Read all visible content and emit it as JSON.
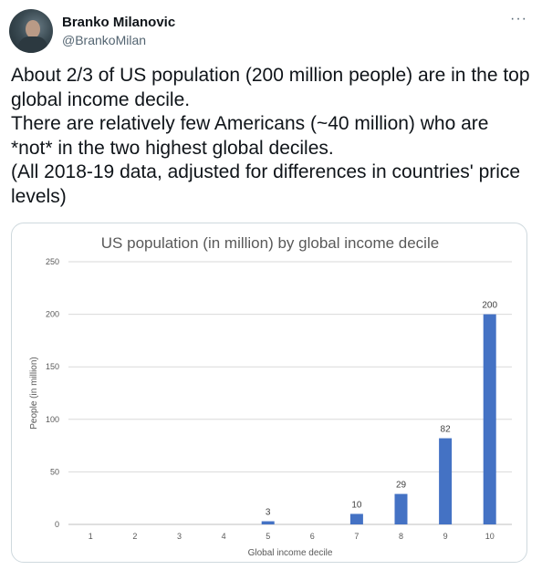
{
  "tweet": {
    "author_name": "Branko Milanovic",
    "author_handle": "@BrankoMilan",
    "more_glyph": "···",
    "text_lines": [
      "About 2/3 of US population (200 million people) are in the top global income decile.",
      "There are relatively few Americans (~40 million) who are *not* in the two highest global deciles.",
      "(All 2018-19 data, adjusted for differences in countries' price levels)"
    ]
  },
  "chart_data": {
    "type": "bar",
    "title": "US population (in million) by global income decile",
    "xlabel": "Global income decile",
    "ylabel": "People (in million)",
    "categories": [
      "1",
      "2",
      "3",
      "4",
      "5",
      "6",
      "7",
      "8",
      "9",
      "10"
    ],
    "values": [
      0,
      0,
      0,
      0,
      3,
      0,
      10,
      29,
      82,
      200
    ],
    "data_labels": [
      "",
      "",
      "",
      "",
      "3",
      "",
      "10",
      "29",
      "82",
      "200"
    ],
    "ylim": [
      0,
      250
    ],
    "yticks": [
      0,
      50,
      100,
      150,
      200,
      250
    ],
    "bar_color": "#4472c4",
    "grid": true,
    "legend": "none"
  }
}
